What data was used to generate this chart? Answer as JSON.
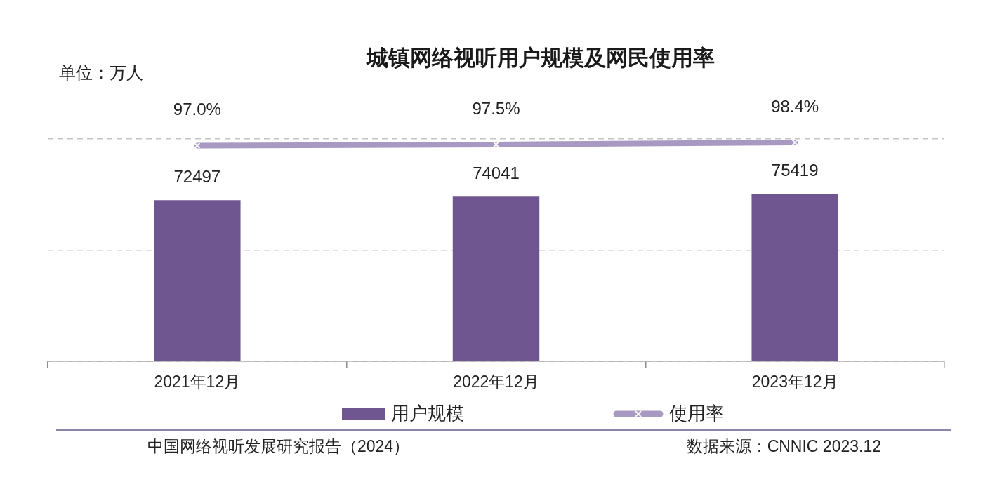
{
  "chart_data": {
    "type": "bar",
    "title": "城镇网络视听用户规模及网民使用率",
    "ylabel": "单位：万人",
    "categories": [
      "2021年12月",
      "2022年12月",
      "2023年12月"
    ],
    "series": [
      {
        "name": "用户规模",
        "color": "#6f5690",
        "values": [
          72497,
          74041,
          75419
        ],
        "value_labels": [
          "72497",
          "74041",
          "75419"
        ]
      },
      {
        "name": "使用率",
        "type": "line",
        "axis": "y2",
        "color": "#a899c2",
        "marker": "cross",
        "values": [
          97.0,
          97.5,
          98.4
        ],
        "value_labels": [
          "97.0%",
          "97.5%",
          "98.4%"
        ]
      }
    ],
    "ylim": [
      0,
      100000
    ],
    "yticks": [
      {
        "value": 0,
        "label": null
      },
      {
        "value": 50000,
        "label": null
      },
      {
        "value": 100000,
        "label": null
      }
    ],
    "grid": "y",
    "legend": "bottom",
    "tick_labels": "x",
    "annotations": [
      "中国网络视听发展研究报告（2024）",
      "数据来源：CNNIC  2023.12"
    ]
  }
}
